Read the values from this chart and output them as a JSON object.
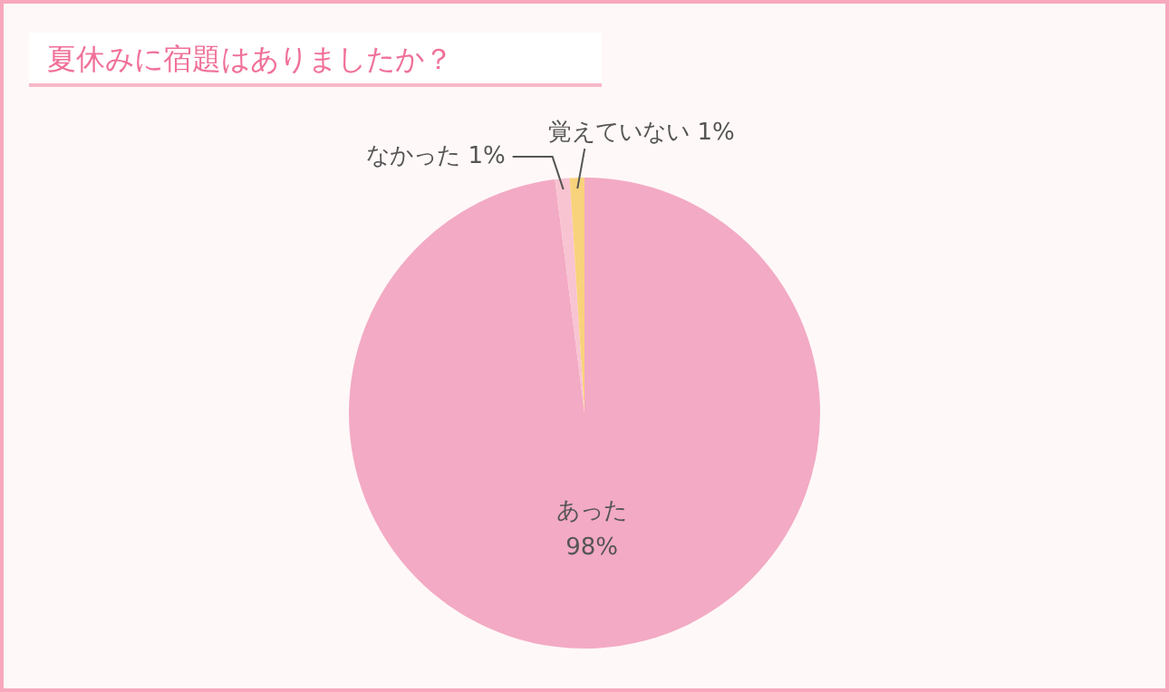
{
  "chart_data": {
    "type": "pie",
    "title": "夏休みに宿題はありましたか？",
    "categories": [
      "あった",
      "なかった",
      "覚えていない"
    ],
    "values": [
      98,
      1,
      1
    ],
    "colors": [
      "#f3aac4",
      "#f8c4d2",
      "#f9d27c"
    ],
    "value_labels": [
      "98%",
      "1%",
      "1%"
    ],
    "legend": false
  }
}
